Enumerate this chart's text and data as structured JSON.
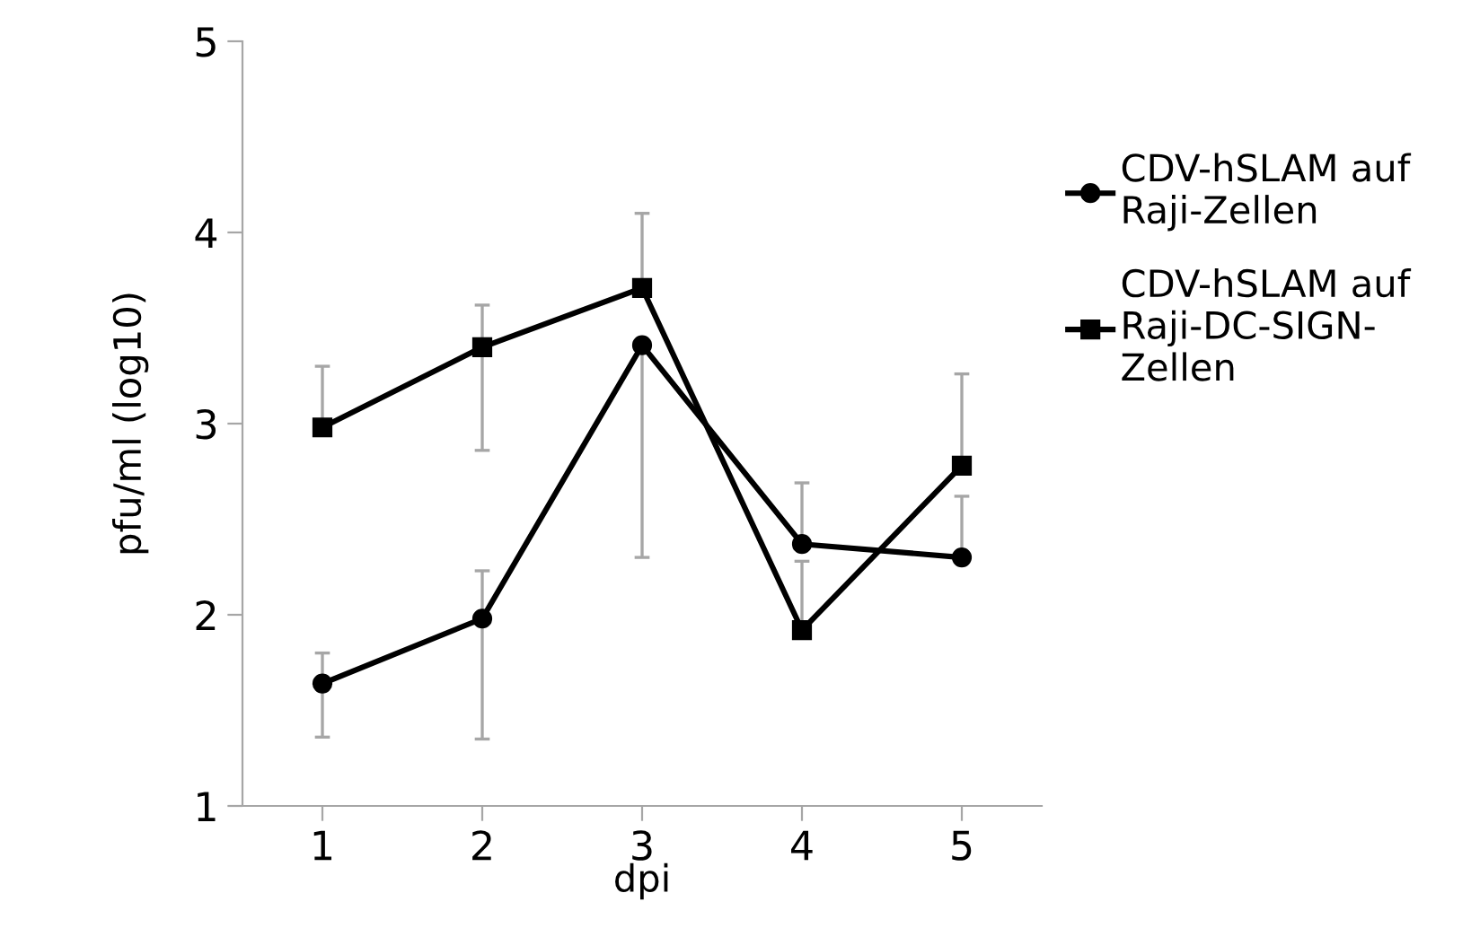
{
  "chart_data": {
    "type": "line",
    "xlabel": "dpi",
    "ylabel": "pfu/ml (log10)",
    "categories": [
      "1",
      "2",
      "3",
      "4",
      "5"
    ],
    "ylim": [
      1,
      5
    ],
    "yticks": [
      1,
      2,
      3,
      4,
      5
    ],
    "grid": false,
    "legend": "right",
    "line_style": "solid",
    "series": [
      {
        "name": "CDV-hSLAM auf\nRaji-Zellen",
        "color": "#000000",
        "marker": "circle",
        "values": [
          1.64,
          1.98,
          3.41,
          2.37,
          2.3
        ],
        "errors": [
          [
            1.36,
            1.8
          ],
          [
            1.35,
            2.23
          ],
          [
            2.3,
            3.41
          ],
          [
            2.37,
            2.69
          ],
          [
            2.3,
            2.62
          ]
        ]
      },
      {
        "name": "CDV-hSLAM auf\nRaji-DC-SIGN-\nZellen",
        "color": "#000000",
        "marker": "square",
        "values": [
          2.98,
          3.4,
          3.71,
          1.92,
          2.78
        ],
        "errors": [
          [
            2.98,
            3.3
          ],
          [
            2.86,
            3.62
          ],
          [
            3.71,
            4.1
          ],
          [
            1.92,
            2.28
          ],
          [
            2.78,
            3.26
          ]
        ]
      }
    ]
  }
}
